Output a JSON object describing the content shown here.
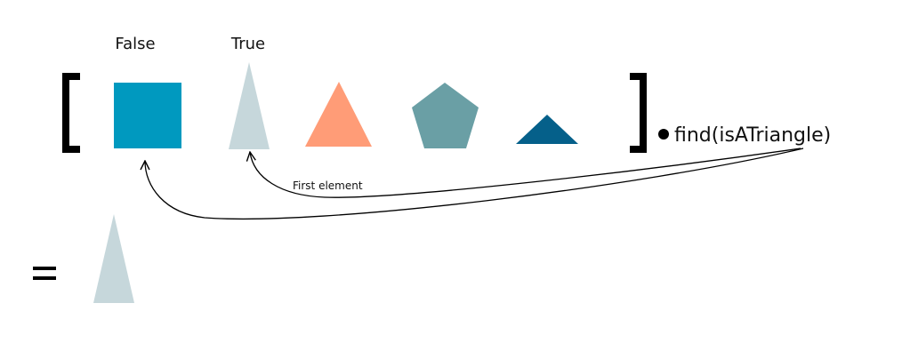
{
  "labels": {
    "first": "False",
    "second": "True"
  },
  "method_call": "find(isATriangle)",
  "arrow_note": "First element",
  "result_sign": "=",
  "colors": {
    "square": "#0099bf",
    "tall_triangle": "#c6d7db",
    "orange_triangle": "#ff9c77",
    "pentagon": "#6a9fa5",
    "flat_triangle": "#05608a",
    "ink": "#000000"
  },
  "shape_names": [
    "square",
    "tall-triangle",
    "triangle",
    "pentagon",
    "flat-triangle"
  ],
  "result_shape": "tall-triangle"
}
